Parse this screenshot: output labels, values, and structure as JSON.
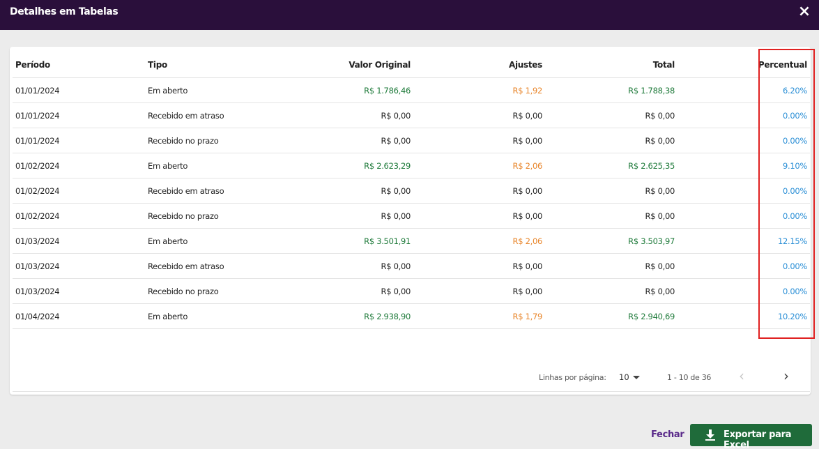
{
  "dialog": {
    "title": "Detalhes em Tabelas",
    "close_icon": "×"
  },
  "table": {
    "headers": {
      "periodo": "Período",
      "tipo": "Tipo",
      "valor_original": "Valor Original",
      "ajustes": "Ajustes",
      "total": "Total",
      "percentual": "Percentual"
    },
    "rows": [
      {
        "periodo": "01/01/2024",
        "tipo": "Em aberto",
        "valor_original": "R$ 1.786,46",
        "ajustes": "R$ 1,92",
        "total": "R$ 1.788,38",
        "percentual": "6.20%"
      },
      {
        "periodo": "01/01/2024",
        "tipo": "Recebido em atraso",
        "valor_original": "R$ 0,00",
        "ajustes": "R$ 0,00",
        "total": "R$ 0,00",
        "percentual": "0.00%"
      },
      {
        "periodo": "01/01/2024",
        "tipo": "Recebido no prazo",
        "valor_original": "R$ 0,00",
        "ajustes": "R$ 0,00",
        "total": "R$ 0,00",
        "percentual": "0.00%"
      },
      {
        "periodo": "01/02/2024",
        "tipo": "Em aberto",
        "valor_original": "R$ 2.623,29",
        "ajustes": "R$ 2,06",
        "total": "R$ 2.625,35",
        "percentual": "9.10%"
      },
      {
        "periodo": "01/02/2024",
        "tipo": "Recebido em atraso",
        "valor_original": "R$ 0,00",
        "ajustes": "R$ 0,00",
        "total": "R$ 0,00",
        "percentual": "0.00%"
      },
      {
        "periodo": "01/02/2024",
        "tipo": "Recebido no prazo",
        "valor_original": "R$ 0,00",
        "ajustes": "R$ 0,00",
        "total": "R$ 0,00",
        "percentual": "0.00%"
      },
      {
        "periodo": "01/03/2024",
        "tipo": "Em aberto",
        "valor_original": "R$ 3.501,91",
        "ajustes": "R$ 2,06",
        "total": "R$ 3.503,97",
        "percentual": "12.15%"
      },
      {
        "periodo": "01/03/2024",
        "tipo": "Recebido em atraso",
        "valor_original": "R$ 0,00",
        "ajustes": "R$ 0,00",
        "total": "R$ 0,00",
        "percentual": "0.00%"
      },
      {
        "periodo": "01/03/2024",
        "tipo": "Recebido no prazo",
        "valor_original": "R$ 0,00",
        "ajustes": "R$ 0,00",
        "total": "R$ 0,00",
        "percentual": "0.00%"
      },
      {
        "periodo": "01/04/2024",
        "tipo": "Em aberto",
        "valor_original": "R$ 2.938,90",
        "ajustes": "R$ 1,79",
        "total": "R$ 2.940,69",
        "percentual": "10.20%"
      }
    ]
  },
  "pagination": {
    "rows_per_page_label": "Linhas por página:",
    "rows_per_page_value": "10",
    "range": "1 - 10 de 36",
    "prev_icon": "‹",
    "next_icon": "›"
  },
  "actions": {
    "close_label": "Fechar",
    "export_label": "Exportar para Excel"
  },
  "colors": {
    "header_bg": "#2a0f3b",
    "positive_value": "#1e7a3a",
    "adjustment_value": "#e8852a",
    "percent_value": "#2b8fd6",
    "highlight_border": "#e02020",
    "export_button": "#1f6b3a",
    "close_link": "#5a2a8a"
  }
}
